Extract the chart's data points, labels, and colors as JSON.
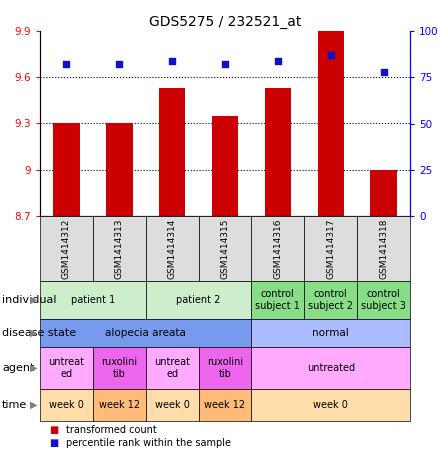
{
  "title": "GDS5275 / 232521_at",
  "samples": [
    "GSM1414312",
    "GSM1414313",
    "GSM1414314",
    "GSM1414315",
    "GSM1414316",
    "GSM1414317",
    "GSM1414318"
  ],
  "bar_values": [
    9.3,
    9.3,
    9.53,
    9.35,
    9.53,
    9.96,
    9.0
  ],
  "bar_base": 8.7,
  "dot_values": [
    82,
    82,
    84,
    82,
    84,
    87,
    78
  ],
  "ylim_left": [
    8.7,
    9.9
  ],
  "ylim_right": [
    0,
    100
  ],
  "yticks_left": [
    8.7,
    9.0,
    9.3,
    9.6,
    9.9
  ],
  "ytick_labels_left": [
    "8.7",
    "9",
    "9.3",
    "9.6",
    "9.9"
  ],
  "yticks_right": [
    0,
    25,
    50,
    75,
    100
  ],
  "ytick_labels_right": [
    "0",
    "25",
    "50",
    "75",
    "100%"
  ],
  "hlines": [
    9.0,
    9.3,
    9.6
  ],
  "bar_color": "#cc0000",
  "dot_color": "#1111cc",
  "bar_width": 0.5,
  "individual_row": {
    "cells": [
      {
        "label": "patient 1",
        "span": [
          0,
          2
        ],
        "color": "#cceecc"
      },
      {
        "label": "patient 2",
        "span": [
          2,
          4
        ],
        "color": "#cceecc"
      },
      {
        "label": "control\nsubject 1",
        "span": [
          4,
          5
        ],
        "color": "#88dd88"
      },
      {
        "label": "control\nsubject 2",
        "span": [
          5,
          6
        ],
        "color": "#88dd88"
      },
      {
        "label": "control\nsubject 3",
        "span": [
          6,
          7
        ],
        "color": "#88dd88"
      }
    ],
    "row_label": "individual"
  },
  "disease_state_row": {
    "cells": [
      {
        "label": "alopecia areata",
        "span": [
          0,
          4
        ],
        "color": "#7799ee"
      },
      {
        "label": "normal",
        "span": [
          4,
          7
        ],
        "color": "#aabbff"
      }
    ],
    "row_label": "disease state"
  },
  "agent_row": {
    "cells": [
      {
        "label": "untreat\ned",
        "span": [
          0,
          1
        ],
        "color": "#ffaaff"
      },
      {
        "label": "ruxolini\ntib",
        "span": [
          1,
          2
        ],
        "color": "#ee66ee"
      },
      {
        "label": "untreat\ned",
        "span": [
          2,
          3
        ],
        "color": "#ffaaff"
      },
      {
        "label": "ruxolini\ntib",
        "span": [
          3,
          4
        ],
        "color": "#ee66ee"
      },
      {
        "label": "untreated",
        "span": [
          4,
          7
        ],
        "color": "#ffaaff"
      }
    ],
    "row_label": "agent"
  },
  "time_row": {
    "cells": [
      {
        "label": "week 0",
        "span": [
          0,
          1
        ],
        "color": "#ffddaa"
      },
      {
        "label": "week 12",
        "span": [
          1,
          2
        ],
        "color": "#ffbb77"
      },
      {
        "label": "week 0",
        "span": [
          2,
          3
        ],
        "color": "#ffddaa"
      },
      {
        "label": "week 12",
        "span": [
          3,
          4
        ],
        "color": "#ffbb77"
      },
      {
        "label": "week 0",
        "span": [
          4,
          7
        ],
        "color": "#ffddaa"
      }
    ],
    "row_label": "time"
  },
  "legend_items": [
    {
      "label": "transformed count",
      "color": "#cc0000"
    },
    {
      "label": "percentile rank within the sample",
      "color": "#1111cc"
    }
  ]
}
